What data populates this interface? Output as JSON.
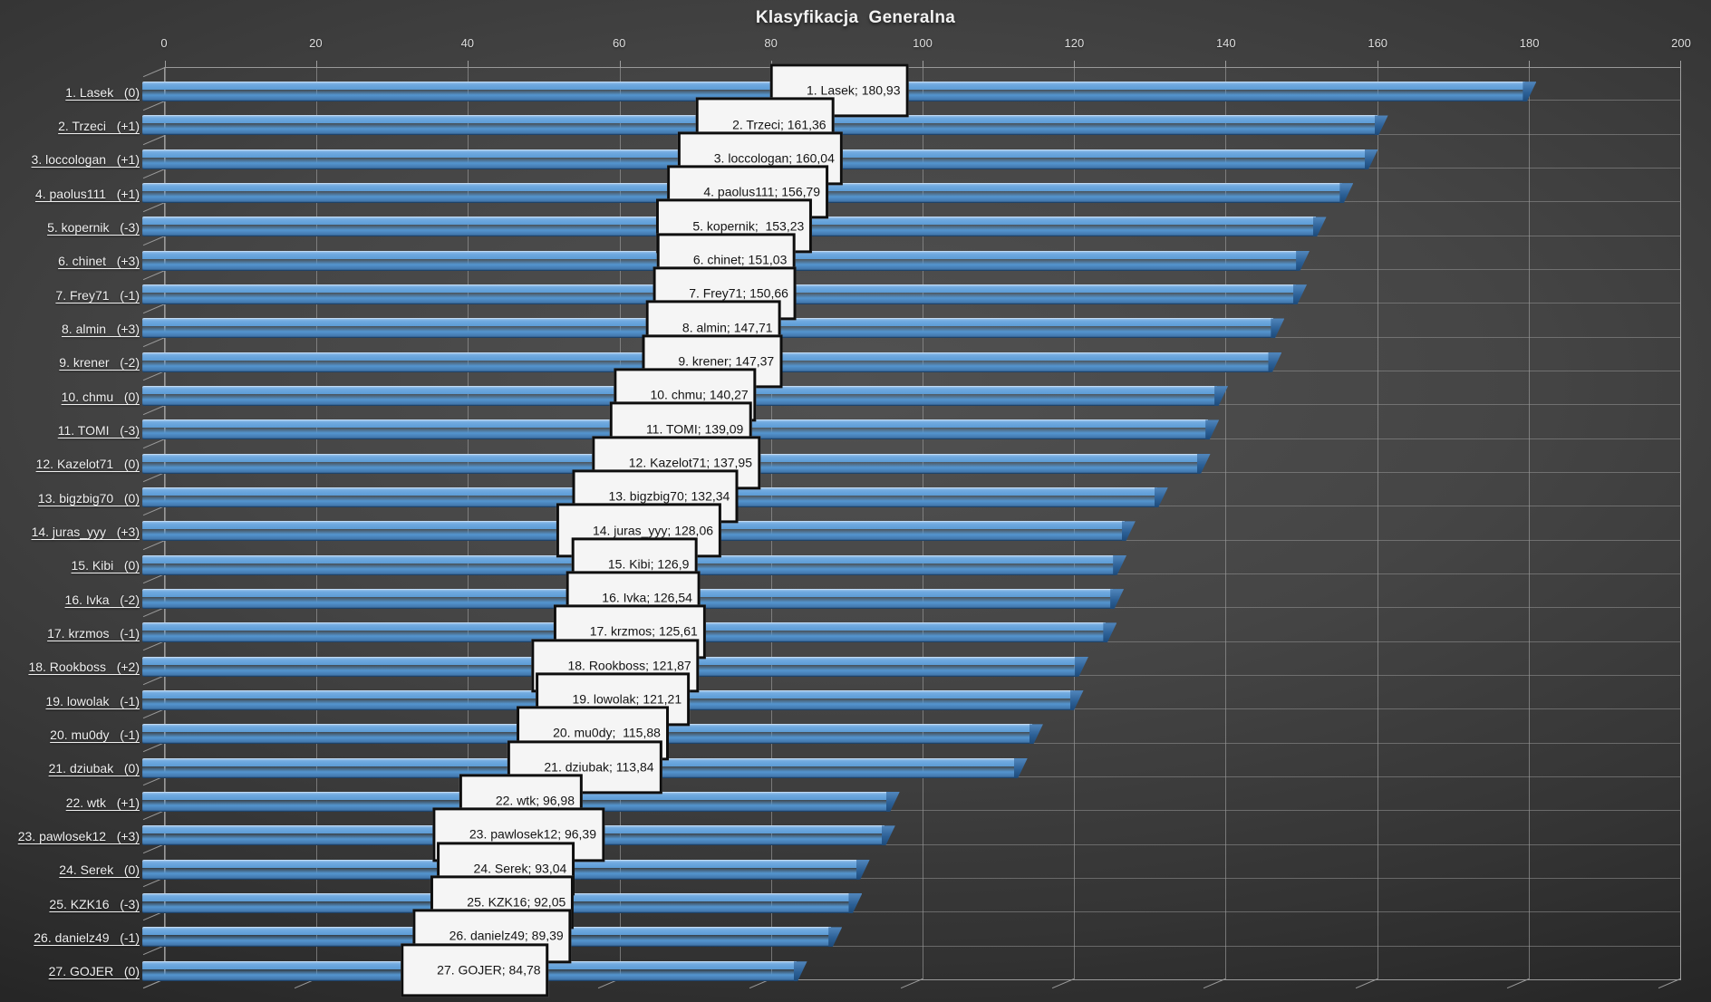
{
  "title": "Klasyfikacja  Generalna",
  "style": {
    "background_center": "#4c4c4c",
    "background_edge": "#1c1c1c",
    "bar_fill": "#5b9bd5",
    "bar_cap": "#2d6197",
    "gridline": "#9a9a9a",
    "axis_text": "#dedede",
    "category_text": "#f0f0f0",
    "label_box_bg": "#f5f5f5",
    "label_box_border": "#0e0e0e",
    "label_text": "#141414"
  },
  "chart_data": {
    "type": "bar",
    "orientation": "horizontal",
    "title": "Klasyfikacja  Generalna",
    "xlabel": "",
    "ylabel": "",
    "axis_min": 0,
    "axis_max": 200,
    "gridline_step": 20,
    "grid": true,
    "legend": false,
    "value_label_position": "center",
    "axis_ticks": [
      "0",
      "20",
      "40",
      "60",
      "80",
      "100",
      "120",
      "140",
      "160",
      "180",
      "200"
    ],
    "categories": [
      "1. Lasek   (0)",
      "2. Trzeci   (+1)",
      "3. loccologan   (+1)",
      "4. paolus111   (+1)",
      "5. kopernik   (-3)",
      "6. chinet   (+3)",
      "7. Frey71   (-1)",
      "8. almin   (+3)",
      "9. krener   (-2)",
      "10. chmu   (0)",
      "11. TOMI   (-3)",
      "12. Kazelot71   (0)",
      "13. bigzbig70   (0)",
      "14. juras_yyy   (+3)",
      "15. Kibi   (0)",
      "16. Ivka   (-2)",
      "17. krzmos   (-1)",
      "18. Rookboss   (+2)",
      "19. lowolak   (-1)",
      "20. mu0dy   (-1)",
      "21. dziubak   (0)",
      "22. wtk   (+1)",
      "23. pawlosek12   (+3)",
      "24. Serek   (0)",
      "25. KZK16   (-3)",
      "26. danielz49   (-1)",
      "27. GOJER   (0)"
    ],
    "values": [
      180.93,
      161.36,
      160.04,
      156.79,
      153.23,
      151.03,
      150.66,
      147.71,
      147.37,
      140.27,
      139.09,
      137.95,
      132.34,
      128.06,
      126.9,
      126.54,
      125.61,
      121.87,
      121.21,
      115.88,
      113.84,
      96.98,
      96.39,
      93.04,
      92.05,
      89.39,
      84.78
    ],
    "rows": [
      {
        "rank": 1,
        "player": "Lasek",
        "change": "(0)",
        "value": 180.93,
        "value_text": "180,93",
        "axis_label": "1. Lasek   (0)",
        "data_label": "1. Lasek; 180,93"
      },
      {
        "rank": 2,
        "player": "Trzeci",
        "change": "(+1)",
        "value": 161.36,
        "value_text": "161,36",
        "axis_label": "2. Trzeci   (+1)",
        "data_label": "2. Trzeci; 161,36"
      },
      {
        "rank": 3,
        "player": "loccologan",
        "change": "(+1)",
        "value": 160.04,
        "value_text": "160,04",
        "axis_label": "3. loccologan   (+1)",
        "data_label": "3. loccologan; 160,04"
      },
      {
        "rank": 4,
        "player": "paolus111",
        "change": "(+1)",
        "value": 156.79,
        "value_text": "156,79",
        "axis_label": "4. paolus111   (+1)",
        "data_label": "4. paolus111; 156,79"
      },
      {
        "rank": 5,
        "player": "kopernik",
        "change": "(-3)",
        "value": 153.23,
        "value_text": "153,23",
        "axis_label": "5. kopernik   (-3)",
        "data_label": "5. kopernik;  153,23"
      },
      {
        "rank": 6,
        "player": "chinet",
        "change": "(+3)",
        "value": 151.03,
        "value_text": "151,03",
        "axis_label": "6. chinet   (+3)",
        "data_label": "6. chinet; 151,03"
      },
      {
        "rank": 7,
        "player": "Frey71",
        "change": "(-1)",
        "value": 150.66,
        "value_text": "150,66",
        "axis_label": "7. Frey71   (-1)",
        "data_label": "7. Frey71; 150,66"
      },
      {
        "rank": 8,
        "player": "almin",
        "change": "(+3)",
        "value": 147.71,
        "value_text": "147,71",
        "axis_label": "8. almin   (+3)",
        "data_label": "8. almin; 147,71"
      },
      {
        "rank": 9,
        "player": "krener",
        "change": "(-2)",
        "value": 147.37,
        "value_text": "147,37",
        "axis_label": "9. krener   (-2)",
        "data_label": "9. krener; 147,37"
      },
      {
        "rank": 10,
        "player": "chmu",
        "change": "(0)",
        "value": 140.27,
        "value_text": "140,27",
        "axis_label": "10. chmu   (0)",
        "data_label": "10. chmu; 140,27"
      },
      {
        "rank": 11,
        "player": "TOMI",
        "change": "(-3)",
        "value": 139.09,
        "value_text": "139,09",
        "axis_label": "11. TOMI   (-3)",
        "data_label": "11. TOMI; 139,09"
      },
      {
        "rank": 12,
        "player": "Kazelot71",
        "change": "(0)",
        "value": 137.95,
        "value_text": "137,95",
        "axis_label": "12. Kazelot71   (0)",
        "data_label": "12. Kazelot71; 137,95"
      },
      {
        "rank": 13,
        "player": "bigzbig70",
        "change": "(0)",
        "value": 132.34,
        "value_text": "132,34",
        "axis_label": "13. bigzbig70   (0)",
        "data_label": "13. bigzbig70; 132,34"
      },
      {
        "rank": 14,
        "player": "juras_yyy",
        "change": "(+3)",
        "value": 128.06,
        "value_text": "128,06",
        "axis_label": "14. juras_yyy   (+3)",
        "data_label": "14. juras_yyy; 128,06"
      },
      {
        "rank": 15,
        "player": "Kibi",
        "change": "(0)",
        "value": 126.9,
        "value_text": "126,9",
        "axis_label": "15. Kibi   (0)",
        "data_label": "15. Kibi; 126,9"
      },
      {
        "rank": 16,
        "player": "Ivka",
        "change": "(-2)",
        "value": 126.54,
        "value_text": "126,54",
        "axis_label": "16. Ivka   (-2)",
        "data_label": "16. Ivka; 126,54"
      },
      {
        "rank": 17,
        "player": "krzmos",
        "change": "(-1)",
        "value": 125.61,
        "value_text": "125,61",
        "axis_label": "17. krzmos   (-1)",
        "data_label": "17. krzmos; 125,61"
      },
      {
        "rank": 18,
        "player": "Rookboss",
        "change": "(+2)",
        "value": 121.87,
        "value_text": "121,87",
        "axis_label": "18. Rookboss   (+2)",
        "data_label": "18. Rookboss; 121,87"
      },
      {
        "rank": 19,
        "player": "lowolak",
        "change": "(-1)",
        "value": 121.21,
        "value_text": "121,21",
        "axis_label": "19. lowolak   (-1)",
        "data_label": "19. lowolak; 121,21"
      },
      {
        "rank": 20,
        "player": "mu0dy",
        "change": "(-1)",
        "value": 115.88,
        "value_text": "115,88",
        "axis_label": "20. mu0dy   (-1)",
        "data_label": "20. mu0dy;  115,88"
      },
      {
        "rank": 21,
        "player": "dziubak",
        "change": "(0)",
        "value": 113.84,
        "value_text": "113,84",
        "axis_label": "21. dziubak   (0)",
        "data_label": "21. dziubak; 113,84"
      },
      {
        "rank": 22,
        "player": "wtk",
        "change": "(+1)",
        "value": 96.98,
        "value_text": "96,98",
        "axis_label": "22. wtk   (+1)",
        "data_label": "22. wtk; 96,98"
      },
      {
        "rank": 23,
        "player": "pawlosek12",
        "change": "(+3)",
        "value": 96.39,
        "value_text": "96,39",
        "axis_label": "23. pawlosek12   (+3)",
        "data_label": "23. pawlosek12; 96,39"
      },
      {
        "rank": 24,
        "player": "Serek",
        "change": "(0)",
        "value": 93.04,
        "value_text": "93,04",
        "axis_label": "24. Serek   (0)",
        "data_label": "24. Serek; 93,04"
      },
      {
        "rank": 25,
        "player": "KZK16",
        "change": "(-3)",
        "value": 92.05,
        "value_text": "92,05",
        "axis_label": "25. KZK16   (-3)",
        "data_label": "25. KZK16; 92,05"
      },
      {
        "rank": 26,
        "player": "danielz49",
        "change": "(-1)",
        "value": 89.39,
        "value_text": "89,39",
        "axis_label": "26. danielz49   (-1)",
        "data_label": "26. danielz49; 89,39"
      },
      {
        "rank": 27,
        "player": "GOJER",
        "change": "(0)",
        "value": 84.78,
        "value_text": "84,78",
        "axis_label": "27. GOJER   (0)",
        "data_label": "27. GOJER; 84,78"
      }
    ]
  }
}
